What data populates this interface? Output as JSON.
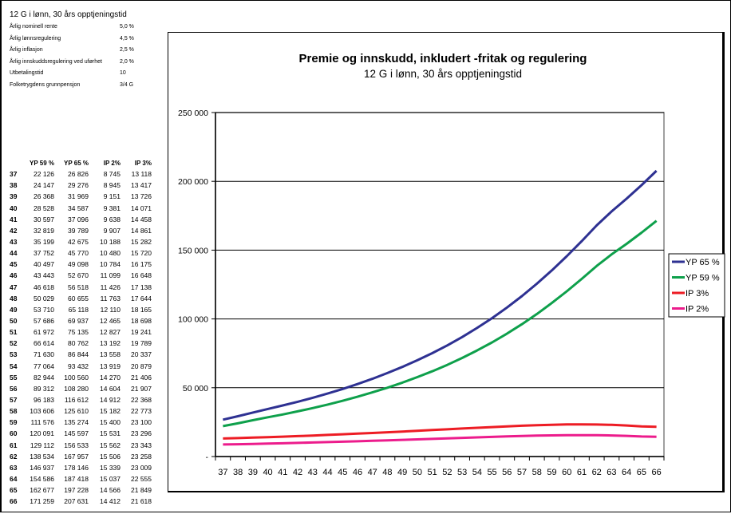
{
  "sheet": {
    "title": "12 G i lønn, 30 års opptjeningstid",
    "params": [
      {
        "label": "Årlig nominell rente",
        "value": "5,0 %"
      },
      {
        "label": "Årlig lønnsregulering",
        "value": "4,5 %"
      },
      {
        "label": "Årlig inflasjon",
        "value": "2,5 %"
      },
      {
        "label": "Årlig innskuddsregulering ved uførhet",
        "value": "2,0 %"
      },
      {
        "label": "Utbetalingstid",
        "value": "10"
      },
      {
        "label": "Folketrygdens grunnpensjon",
        "value": "3/4 G"
      }
    ],
    "table_headers": [
      "",
      "YP 59 %",
      "YP 65 %",
      "IP 2%",
      "IP 3%"
    ],
    "table_rows": [
      [
        "37",
        "22 126",
        "26 826",
        "8 745",
        "13 118"
      ],
      [
        "38",
        "24 147",
        "29 276",
        "8 945",
        "13 417"
      ],
      [
        "39",
        "26 368",
        "31 969",
        "9 151",
        "13 726"
      ],
      [
        "40",
        "28 528",
        "34 587",
        "9 381",
        "14 071"
      ],
      [
        "41",
        "30 597",
        "37 096",
        "9 638",
        "14 458"
      ],
      [
        "42",
        "32 819",
        "39 789",
        "9 907",
        "14 861"
      ],
      [
        "43",
        "35 199",
        "42 675",
        "10 188",
        "15 282"
      ],
      [
        "44",
        "37 752",
        "45 770",
        "10 480",
        "15 720"
      ],
      [
        "45",
        "40 497",
        "49 098",
        "10 784",
        "16 175"
      ],
      [
        "46",
        "43 443",
        "52 670",
        "11 099",
        "16 648"
      ],
      [
        "47",
        "46 618",
        "56 518",
        "11 426",
        "17 138"
      ],
      [
        "48",
        "50 029",
        "60 655",
        "11 763",
        "17 644"
      ],
      [
        "49",
        "53 710",
        "65 118",
        "12 110",
        "18 165"
      ],
      [
        "50",
        "57 686",
        "69 937",
        "12 465",
        "18 698"
      ],
      [
        "51",
        "61 972",
        "75 135",
        "12 827",
        "19 241"
      ],
      [
        "52",
        "66 614",
        "80 762",
        "13 192",
        "19 789"
      ],
      [
        "53",
        "71 630",
        "86 844",
        "13 558",
        "20 337"
      ],
      [
        "54",
        "77 064",
        "93 432",
        "13 919",
        "20 879"
      ],
      [
        "55",
        "82 944",
        "100 560",
        "14 270",
        "21 406"
      ],
      [
        "56",
        "89 312",
        "108 280",
        "14 604",
        "21 907"
      ],
      [
        "57",
        "96 183",
        "116 612",
        "14 912",
        "22 368"
      ],
      [
        "58",
        "103 606",
        "125 610",
        "15 182",
        "22 773"
      ],
      [
        "59",
        "111 576",
        "135 274",
        "15 400",
        "23 100"
      ],
      [
        "60",
        "120 091",
        "145 597",
        "15 531",
        "23 296"
      ],
      [
        "61",
        "129 112",
        "156 533",
        "15 562",
        "23 343"
      ],
      [
        "62",
        "138 534",
        "167 957",
        "15 506",
        "23 258"
      ],
      [
        "63",
        "146 937",
        "178 146",
        "15 339",
        "23 009"
      ],
      [
        "64",
        "154 586",
        "187 418",
        "15 037",
        "22 555"
      ],
      [
        "65",
        "162 677",
        "197 228",
        "14 566",
        "21 849"
      ],
      [
        "66",
        "171 259",
        "207 631",
        "14 412",
        "21 618"
      ]
    ]
  },
  "chart_data": {
    "type": "line",
    "title": "Premie og innskudd, inkludert -fritak og regulering",
    "subtitle": "12 G i lønn, 30 års opptjeningstid",
    "xlabel": "",
    "ylabel": "",
    "categories": [
      "37",
      "38",
      "39",
      "40",
      "41",
      "42",
      "43",
      "44",
      "45",
      "46",
      "47",
      "48",
      "49",
      "50",
      "51",
      "52",
      "53",
      "54",
      "55",
      "56",
      "57",
      "58",
      "59",
      "60",
      "61",
      "62",
      "63",
      "64",
      "65",
      "66"
    ],
    "ylim": [
      0,
      250000
    ],
    "yticks": [
      0,
      50000,
      100000,
      150000,
      200000,
      250000
    ],
    "ytick_labels": [
      "-",
      "50 000",
      "100 000",
      "150 000",
      "200 000",
      "250 000"
    ],
    "grid": "horizontal",
    "legend": "right",
    "series": [
      {
        "name": "YP 65 %",
        "color": "#2e3192",
        "values": [
          26826,
          29276,
          31969,
          34587,
          37096,
          39789,
          42675,
          45770,
          49098,
          52670,
          56518,
          60655,
          65118,
          69937,
          75135,
          80762,
          86844,
          93432,
          100560,
          108280,
          116612,
          125610,
          135274,
          145597,
          156533,
          167957,
          178146,
          187418,
          197228,
          207631
        ]
      },
      {
        "name": "YP 59 %",
        "color": "#0ea04b",
        "values": [
          22126,
          24147,
          26368,
          28528,
          30597,
          32819,
          35199,
          37752,
          40497,
          43443,
          46618,
          50029,
          53710,
          57686,
          61972,
          66614,
          71630,
          77064,
          82944,
          89312,
          96183,
          103606,
          111576,
          120091,
          129112,
          138534,
          146937,
          154586,
          162677,
          171259
        ]
      },
      {
        "name": "IP 3%",
        "color": "#ed1c24",
        "values": [
          13118,
          13417,
          13726,
          14071,
          14458,
          14861,
          15282,
          15720,
          16175,
          16648,
          17138,
          17644,
          18165,
          18698,
          19241,
          19789,
          20337,
          20879,
          21406,
          21907,
          22368,
          22773,
          23100,
          23296,
          23343,
          23258,
          23009,
          22555,
          21849,
          21618
        ]
      },
      {
        "name": "IP 2%",
        "color": "#ec1c8c",
        "values": [
          8745,
          8945,
          9151,
          9381,
          9638,
          9907,
          10188,
          10480,
          10784,
          11099,
          11426,
          11763,
          12110,
          12465,
          12827,
          13192,
          13558,
          13919,
          14270,
          14604,
          14912,
          15182,
          15400,
          15531,
          15562,
          15506,
          15339,
          15037,
          14566,
          14412
        ]
      }
    ]
  }
}
